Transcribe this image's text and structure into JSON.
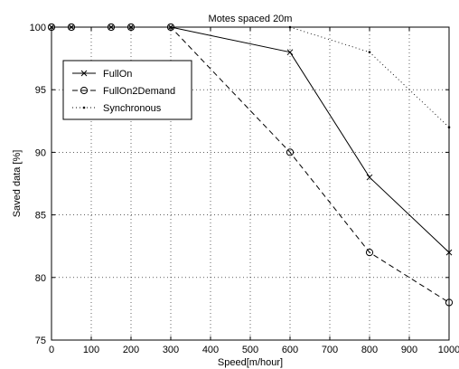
{
  "chart_data": {
    "type": "line",
    "title": "Motes spaced 20m",
    "xlabel": "Speed[m/hour]",
    "ylabel": "Saved data [%]",
    "xlim": [
      0,
      1000
    ],
    "ylim": [
      75,
      100
    ],
    "xticks": [
      0,
      100,
      200,
      300,
      400,
      500,
      600,
      700,
      800,
      900,
      1000
    ],
    "yticks": [
      75,
      80,
      85,
      90,
      95,
      100
    ],
    "grid": true,
    "legend_position": "upper-left",
    "series": [
      {
        "name": "FullOn",
        "line_style": "solid",
        "marker": "x",
        "x": [
          0,
          50,
          150,
          200,
          300,
          600,
          800,
          1000
        ],
        "y": [
          100,
          100,
          100,
          100,
          100,
          98,
          88,
          82
        ]
      },
      {
        "name": "FullOn2Demand",
        "line_style": "dashed",
        "marker": "o",
        "x": [
          0,
          50,
          150,
          200,
          300,
          600,
          800,
          1000
        ],
        "y": [
          100,
          100,
          100,
          100,
          100,
          90,
          82,
          78
        ]
      },
      {
        "name": "Synchronous",
        "line_style": "dotted",
        "marker": "dot",
        "x": [
          0,
          50,
          150,
          200,
          300,
          600,
          800,
          1000
        ],
        "y": [
          100,
          100,
          100,
          100,
          100,
          100,
          98,
          92
        ]
      }
    ]
  }
}
